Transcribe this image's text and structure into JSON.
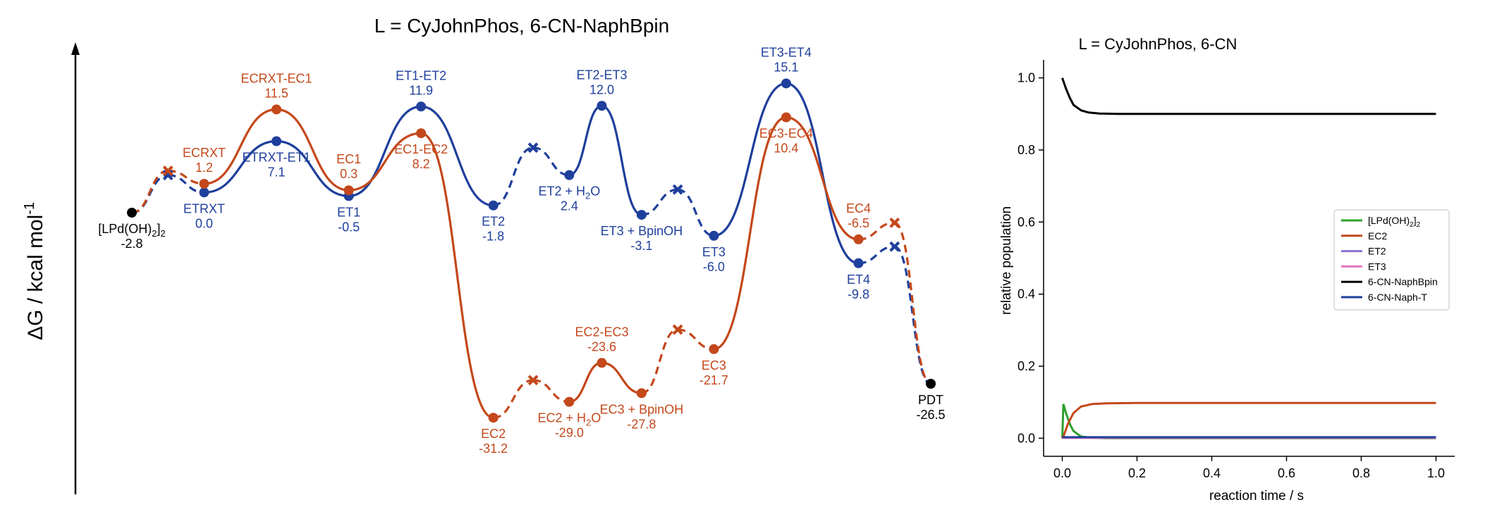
{
  "chart_data": [
    {
      "type": "line",
      "title": "L = CyJohnPhos, 6-CN-NaphBpin",
      "ylabel": "ΔG / kcal mol",
      "ylabel_sup": "-1",
      "colors": {
        "ET": "#1f3f9c",
        "EC": "#c4481b",
        "shared": "#000000"
      },
      "ylim": [
        -33,
        17
      ],
      "series": [
        {
          "name": "ET",
          "points": [
            {
              "pos": 0,
              "G": -2.8,
              "kind": "end"
            },
            {
              "pos": 0.5,
              "G": 2.4,
              "kind": "x"
            },
            {
              "pos": 1,
              "G": 0.0,
              "kind": "dot"
            },
            {
              "pos": 2,
              "G": 7.1,
              "kind": "dot"
            },
            {
              "pos": 3,
              "G": -0.5,
              "kind": "dot"
            },
            {
              "pos": 4,
              "G": 11.9,
              "kind": "dot"
            },
            {
              "pos": 5,
              "G": -1.8,
              "kind": "dot"
            },
            {
              "pos": 5.55,
              "G": 6.2,
              "kind": "x"
            },
            {
              "pos": 6.05,
              "G": 2.4,
              "kind": "dot"
            },
            {
              "pos": 6.5,
              "G": 12.0,
              "kind": "dot"
            },
            {
              "pos": 7.05,
              "G": -3.1,
              "kind": "dot"
            },
            {
              "pos": 7.55,
              "G": 0.4,
              "kind": "x"
            },
            {
              "pos": 8.05,
              "G": -6.0,
              "kind": "dot"
            },
            {
              "pos": 9.05,
              "G": 15.1,
              "kind": "dot"
            },
            {
              "pos": 10.05,
              "G": -9.8,
              "kind": "dot"
            },
            {
              "pos": 10.55,
              "G": -7.5,
              "kind": "x"
            },
            {
              "pos": 11.05,
              "G": -26.5,
              "kind": "end"
            }
          ],
          "dashed_segments": [
            [
              0,
              0.5
            ],
            [
              0.5,
              1
            ],
            [
              5,
              5.55
            ],
            [
              5.55,
              6.05
            ],
            [
              7.05,
              7.55
            ],
            [
              7.55,
              8.05
            ],
            [
              10.05,
              10.55
            ],
            [
              10.55,
              11.05
            ]
          ]
        },
        {
          "name": "EC",
          "points": [
            {
              "pos": 0,
              "G": -2.8,
              "kind": "end"
            },
            {
              "pos": 0.5,
              "G": 3.0,
              "kind": "x"
            },
            {
              "pos": 1,
              "G": 1.2,
              "kind": "dot"
            },
            {
              "pos": 2,
              "G": 11.5,
              "kind": "dot"
            },
            {
              "pos": 3,
              "G": 0.3,
              "kind": "dot"
            },
            {
              "pos": 4,
              "G": 8.2,
              "kind": "dot"
            },
            {
              "pos": 5,
              "G": -31.2,
              "kind": "dot"
            },
            {
              "pos": 5.55,
              "G": -26.0,
              "kind": "x"
            },
            {
              "pos": 6.05,
              "G": -29.0,
              "kind": "dot"
            },
            {
              "pos": 6.5,
              "G": -23.6,
              "kind": "dot"
            },
            {
              "pos": 7.05,
              "G": -27.8,
              "kind": "dot"
            },
            {
              "pos": 7.55,
              "G": -19.0,
              "kind": "x"
            },
            {
              "pos": 8.05,
              "G": -21.7,
              "kind": "dot"
            },
            {
              "pos": 9.05,
              "G": 10.4,
              "kind": "dot"
            },
            {
              "pos": 10.05,
              "G": -6.5,
              "kind": "dot"
            },
            {
              "pos": 10.55,
              "G": -4.2,
              "kind": "x"
            },
            {
              "pos": 11.05,
              "G": -26.5,
              "kind": "end"
            }
          ],
          "dashed_segments": [
            [
              0,
              0.5
            ],
            [
              0.5,
              1
            ],
            [
              5,
              5.55
            ],
            [
              5.55,
              6.05
            ],
            [
              7.05,
              7.55
            ],
            [
              7.55,
              8.05
            ],
            [
              10.05,
              10.55
            ],
            [
              10.55,
              11.05
            ]
          ]
        }
      ],
      "annotations": [
        {
          "series": "shared",
          "pos": 0,
          "G": -2.8,
          "text": "[LPd(OH)",
          "sub": "2",
          "tail": "]",
          "sub2": "2",
          "value": "-2.8",
          "where": "below"
        },
        {
          "series": "EC",
          "pos": 1,
          "G": 1.2,
          "text": "ECRXT",
          "value": "1.2",
          "where": "above"
        },
        {
          "series": "ET",
          "pos": 1,
          "G": 0.0,
          "text": "ETRXT",
          "value": "0.0",
          "where": "below"
        },
        {
          "series": "EC",
          "pos": 2,
          "G": 11.5,
          "text": "ECRXT-EC1",
          "value": "11.5",
          "where": "above"
        },
        {
          "series": "ET",
          "pos": 2,
          "G": 7.1,
          "text": "ETRXT-ET1",
          "value": "7.1",
          "where": "below"
        },
        {
          "series": "EC",
          "pos": 3,
          "G": 0.3,
          "text": "EC1",
          "value": "0.3",
          "where": "above"
        },
        {
          "series": "ET",
          "pos": 3,
          "G": -0.5,
          "text": "ET1",
          "value": "-0.5",
          "where": "below"
        },
        {
          "series": "ET",
          "pos": 4,
          "G": 11.9,
          "text": "ET1-ET2",
          "value": "11.9",
          "where": "above"
        },
        {
          "series": "EC",
          "pos": 4,
          "G": 8.2,
          "text": "EC1-EC2",
          "value": "8.2",
          "where": "below"
        },
        {
          "series": "ET",
          "pos": 5,
          "G": -1.8,
          "text": "ET2",
          "value": "-1.8",
          "where": "below"
        },
        {
          "series": "ET",
          "pos": 6.05,
          "G": 2.4,
          "text": "ET2 + H",
          "sub": "2",
          "tail": "O",
          "value": "2.4",
          "where": "below"
        },
        {
          "series": "ET",
          "pos": 6.5,
          "G": 12.0,
          "text": "ET2-ET3",
          "value": "12.0",
          "where": "above"
        },
        {
          "series": "ET",
          "pos": 7.05,
          "G": -3.1,
          "text": "ET3 + BpinOH",
          "value": "-3.1",
          "where": "below"
        },
        {
          "series": "ET",
          "pos": 8.05,
          "G": -6.0,
          "text": "ET3",
          "value": "-6.0",
          "where": "below"
        },
        {
          "series": "ET",
          "pos": 9.05,
          "G": 15.1,
          "text": "ET3-ET4",
          "value": "15.1",
          "where": "above"
        },
        {
          "series": "EC",
          "pos": 9.05,
          "G": 10.4,
          "text": "EC3-EC4",
          "value": "10.4",
          "where": "below"
        },
        {
          "series": "EC",
          "pos": 10.05,
          "G": -6.5,
          "text": "EC4",
          "value": "-6.5",
          "where": "above"
        },
        {
          "series": "ET",
          "pos": 10.05,
          "G": -9.8,
          "text": "ET4",
          "value": "-9.8",
          "where": "below"
        },
        {
          "series": "EC",
          "pos": 5,
          "G": -31.2,
          "text": "EC2",
          "value": "-31.2",
          "where": "below"
        },
        {
          "series": "EC",
          "pos": 6.05,
          "G": -29.0,
          "text": "EC2 + H",
          "sub": "2",
          "tail": "O",
          "value": "-29.0",
          "where": "below"
        },
        {
          "series": "EC",
          "pos": 6.5,
          "G": -23.6,
          "text": "EC2-EC3",
          "value": "-23.6",
          "where": "above"
        },
        {
          "series": "EC",
          "pos": 7.05,
          "G": -27.8,
          "text": "EC3 + BpinOH",
          "value": "-27.8",
          "where": "below"
        },
        {
          "series": "EC",
          "pos": 8.05,
          "G": -21.7,
          "text": "EC3",
          "value": "-21.7",
          "where": "below"
        },
        {
          "series": "shared",
          "pos": 11.05,
          "G": -26.5,
          "text": "PDT",
          "value": "-26.5",
          "where": "below"
        }
      ]
    },
    {
      "type": "line",
      "title": "L = CyJohnPhos, 6-CN",
      "xlabel": "reaction time / s",
      "ylabel": "relative population",
      "xlim": [
        -0.05,
        1.05
      ],
      "ylim": [
        -0.05,
        1.05
      ],
      "xticks": [
        "0.0",
        "0.2",
        "0.4",
        "0.6",
        "0.8",
        "1.0"
      ],
      "yticks": [
        "0.0",
        "0.2",
        "0.4",
        "0.6",
        "0.8",
        "1.0"
      ],
      "legend_position": "center-right",
      "series": [
        {
          "name": "[LPd(OH)",
          "name_sub": "2",
          "name_tail": "]",
          "name_sub2": "2",
          "color": "#2ca02c",
          "x": [
            0,
            0.003,
            0.01,
            0.02,
            0.03,
            0.05,
            0.08,
            0.12,
            1.0
          ],
          "y": [
            0,
            0.095,
            0.07,
            0.04,
            0.02,
            0.005,
            0.001,
            0,
            0
          ]
        },
        {
          "name": "EC2",
          "color": "#c4481b",
          "x": [
            0,
            0.005,
            0.015,
            0.03,
            0.05,
            0.08,
            0.12,
            0.2,
            1.0
          ],
          "y": [
            0,
            0.01,
            0.04,
            0.07,
            0.088,
            0.095,
            0.097,
            0.098,
            0.098
          ]
        },
        {
          "name": "ET2",
          "color": "#8f6fd0",
          "x": [
            0,
            1.0
          ],
          "y": [
            0.002,
            0.002
          ]
        },
        {
          "name": "ET3",
          "color": "#e377c2",
          "x": [
            0,
            1.0
          ],
          "y": [
            0.001,
            0.001
          ]
        },
        {
          "name": "6-CN-NaphBpin",
          "color": "#000000",
          "x": [
            0,
            0.01,
            0.02,
            0.03,
            0.05,
            0.07,
            0.1,
            0.15,
            0.25,
            0.5,
            1.0
          ],
          "y": [
            1.0,
            0.97,
            0.945,
            0.925,
            0.91,
            0.904,
            0.901,
            0.9,
            0.9,
            0.9,
            0.9
          ]
        },
        {
          "name": "6-CN-Naph-T",
          "color": "#1f3f9c",
          "x": [
            0,
            1.0
          ],
          "y": [
            0.003,
            0.003
          ]
        }
      ]
    }
  ]
}
